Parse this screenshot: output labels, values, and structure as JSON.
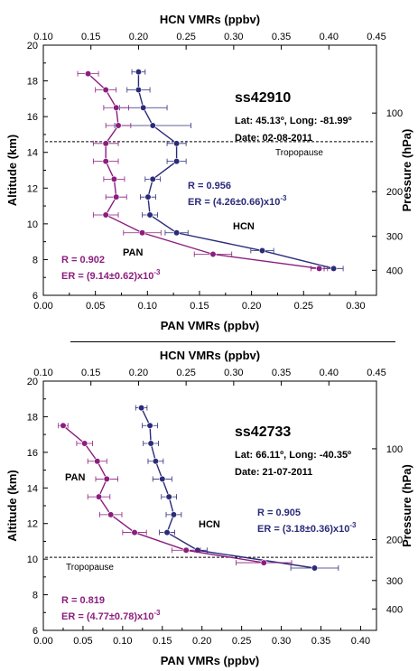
{
  "colors": {
    "pan": "#8b1e7e",
    "hcn": "#2b2b7a",
    "axis": "#000000"
  },
  "chart_data": [
    {
      "type": "line",
      "xlabel_top": "HCN  VMRs (ppbv)",
      "xlabel_bottom": "PAN  VMRs (ppbv)",
      "ylabel_left": "Altitude (km)",
      "ylabel_right": "Pressure (hPa)",
      "ylim": [
        6,
        20
      ],
      "xlim_bottom": [
        0.0,
        0.32
      ],
      "xlim_top": [
        0.1,
        0.45
      ],
      "yticks": [
        "6",
        "8",
        "10",
        "12",
        "14",
        "16",
        "18",
        "20"
      ],
      "xticks_bottom": [
        "0.00",
        "0.05",
        "0.10",
        "0.15",
        "0.20",
        "0.25",
        "0.30"
      ],
      "xticks_top": [
        "0.10",
        "0.15",
        "0.20",
        "0.25",
        "0.30",
        "0.35",
        "0.40",
        "0.45"
      ],
      "pressure_ticks": [
        {
          "label": "100",
          "alt": 16.2
        },
        {
          "label": "200",
          "alt": 11.8
        },
        {
          "label": "300",
          "alt": 9.3
        },
        {
          "label": "400",
          "alt": 7.4
        }
      ],
      "tropopause_alt": 14.6,
      "tropopause_label": "Tropopause",
      "info": [
        "ss42910",
        "Lat: 45.13º, Long: -81.99º",
        "Date: 02-08-2011"
      ],
      "hcn_stats": [
        "R = 0.956",
        "ER = (4.26±0.66)x10"
      ],
      "pan_stats": [
        "R = 0.902",
        "ER = (9.14±0.62)x10"
      ],
      "exponent": "-3",
      "hcn_label": "HCN",
      "pan_label": "PAN",
      "series": [
        {
          "name": "HCN",
          "axis": "top",
          "alt": [
            18.5,
            17.5,
            16.5,
            15.5,
            14.5,
            13.5,
            12.5,
            11.5,
            10.5,
            9.5,
            8.5,
            7.5
          ],
          "values": [
            0.2,
            0.2,
            0.205,
            0.215,
            0.24,
            0.24,
            0.215,
            0.21,
            0.212,
            0.24,
            0.33,
            0.405
          ],
          "err": [
            0.007,
            0.012,
            0.025,
            0.04,
            0.01,
            0.01,
            0.008,
            0.008,
            0.008,
            0.012,
            0.012,
            0.01
          ]
        },
        {
          "name": "PAN",
          "axis": "bottom",
          "alt": [
            18.4,
            17.5,
            16.5,
            15.5,
            14.5,
            13.5,
            12.5,
            11.5,
            10.5,
            9.5,
            8.3,
            7.5
          ],
          "values": [
            0.043,
            0.06,
            0.07,
            0.072,
            0.06,
            0.06,
            0.068,
            0.07,
            0.06,
            0.095,
            0.163,
            0.265
          ],
          "err": [
            0.01,
            0.01,
            0.012,
            0.012,
            0.012,
            0.012,
            0.01,
            0.01,
            0.012,
            0.018,
            0.018,
            0.008
          ]
        }
      ]
    },
    {
      "type": "line",
      "xlabel_top": "HCN  VMRs (ppbv)",
      "xlabel_bottom": "PAN  VMRs (ppbv)",
      "ylabel_left": "Altitude (km)",
      "ylabel_right": "Pressure (hPa)",
      "ylim": [
        6,
        20
      ],
      "xlim_bottom": [
        0.0,
        0.42
      ],
      "xlim_top": [
        0.1,
        0.45
      ],
      "yticks": [
        "6",
        "8",
        "10",
        "12",
        "14",
        "16",
        "18",
        "20"
      ],
      "xticks_bottom": [
        "0.00",
        "0.05",
        "0.10",
        "0.15",
        "0.20",
        "0.25",
        "0.30",
        "0.35",
        "0.40"
      ],
      "xticks_top": [
        "0.10",
        "0.15",
        "0.20",
        "0.25",
        "0.30",
        "0.35",
        "0.40",
        "0.45"
      ],
      "pressure_ticks": [
        {
          "label": "100",
          "alt": 16.2
        },
        {
          "label": "200",
          "alt": 11.1
        },
        {
          "label": "300",
          "alt": 8.8
        },
        {
          "label": "400",
          "alt": 7.2
        }
      ],
      "tropopause_alt": 10.1,
      "tropopause_label": "Tropopause",
      "info": [
        "ss42733",
        "Lat: 66.11º, Long: -40.35º",
        "Date: 21-07-2011"
      ],
      "hcn_stats": [
        "R = 0.905",
        "ER = (3.18±0.36)x10"
      ],
      "pan_stats": [
        "R = 0.819",
        "ER = (4.77±0.78)x10"
      ],
      "exponent": "-3",
      "hcn_label": "HCN",
      "pan_label": "PAN",
      "series": [
        {
          "name": "HCN",
          "axis": "top",
          "alt": [
            18.5,
            17.5,
            16.5,
            15.5,
            14.5,
            13.5,
            12.5,
            11.5,
            10.5,
            9.5
          ],
          "values": [
            0.203,
            0.212,
            0.213,
            0.218,
            0.225,
            0.232,
            0.237,
            0.23,
            0.262,
            0.385
          ],
          "err": [
            0.006,
            0.008,
            0.008,
            0.008,
            0.01,
            0.008,
            0.008,
            0.008,
            0.01,
            0.025
          ]
        },
        {
          "name": "PAN",
          "axis": "bottom",
          "alt": [
            17.5,
            16.5,
            15.5,
            14.5,
            13.5,
            12.5,
            11.5,
            10.5,
            9.8
          ],
          "values": [
            0.025,
            0.052,
            0.068,
            0.08,
            0.07,
            0.085,
            0.115,
            0.18,
            0.278
          ],
          "err": [
            0.006,
            0.01,
            0.012,
            0.014,
            0.014,
            0.014,
            0.015,
            0.018,
            0.035
          ]
        }
      ]
    }
  ]
}
